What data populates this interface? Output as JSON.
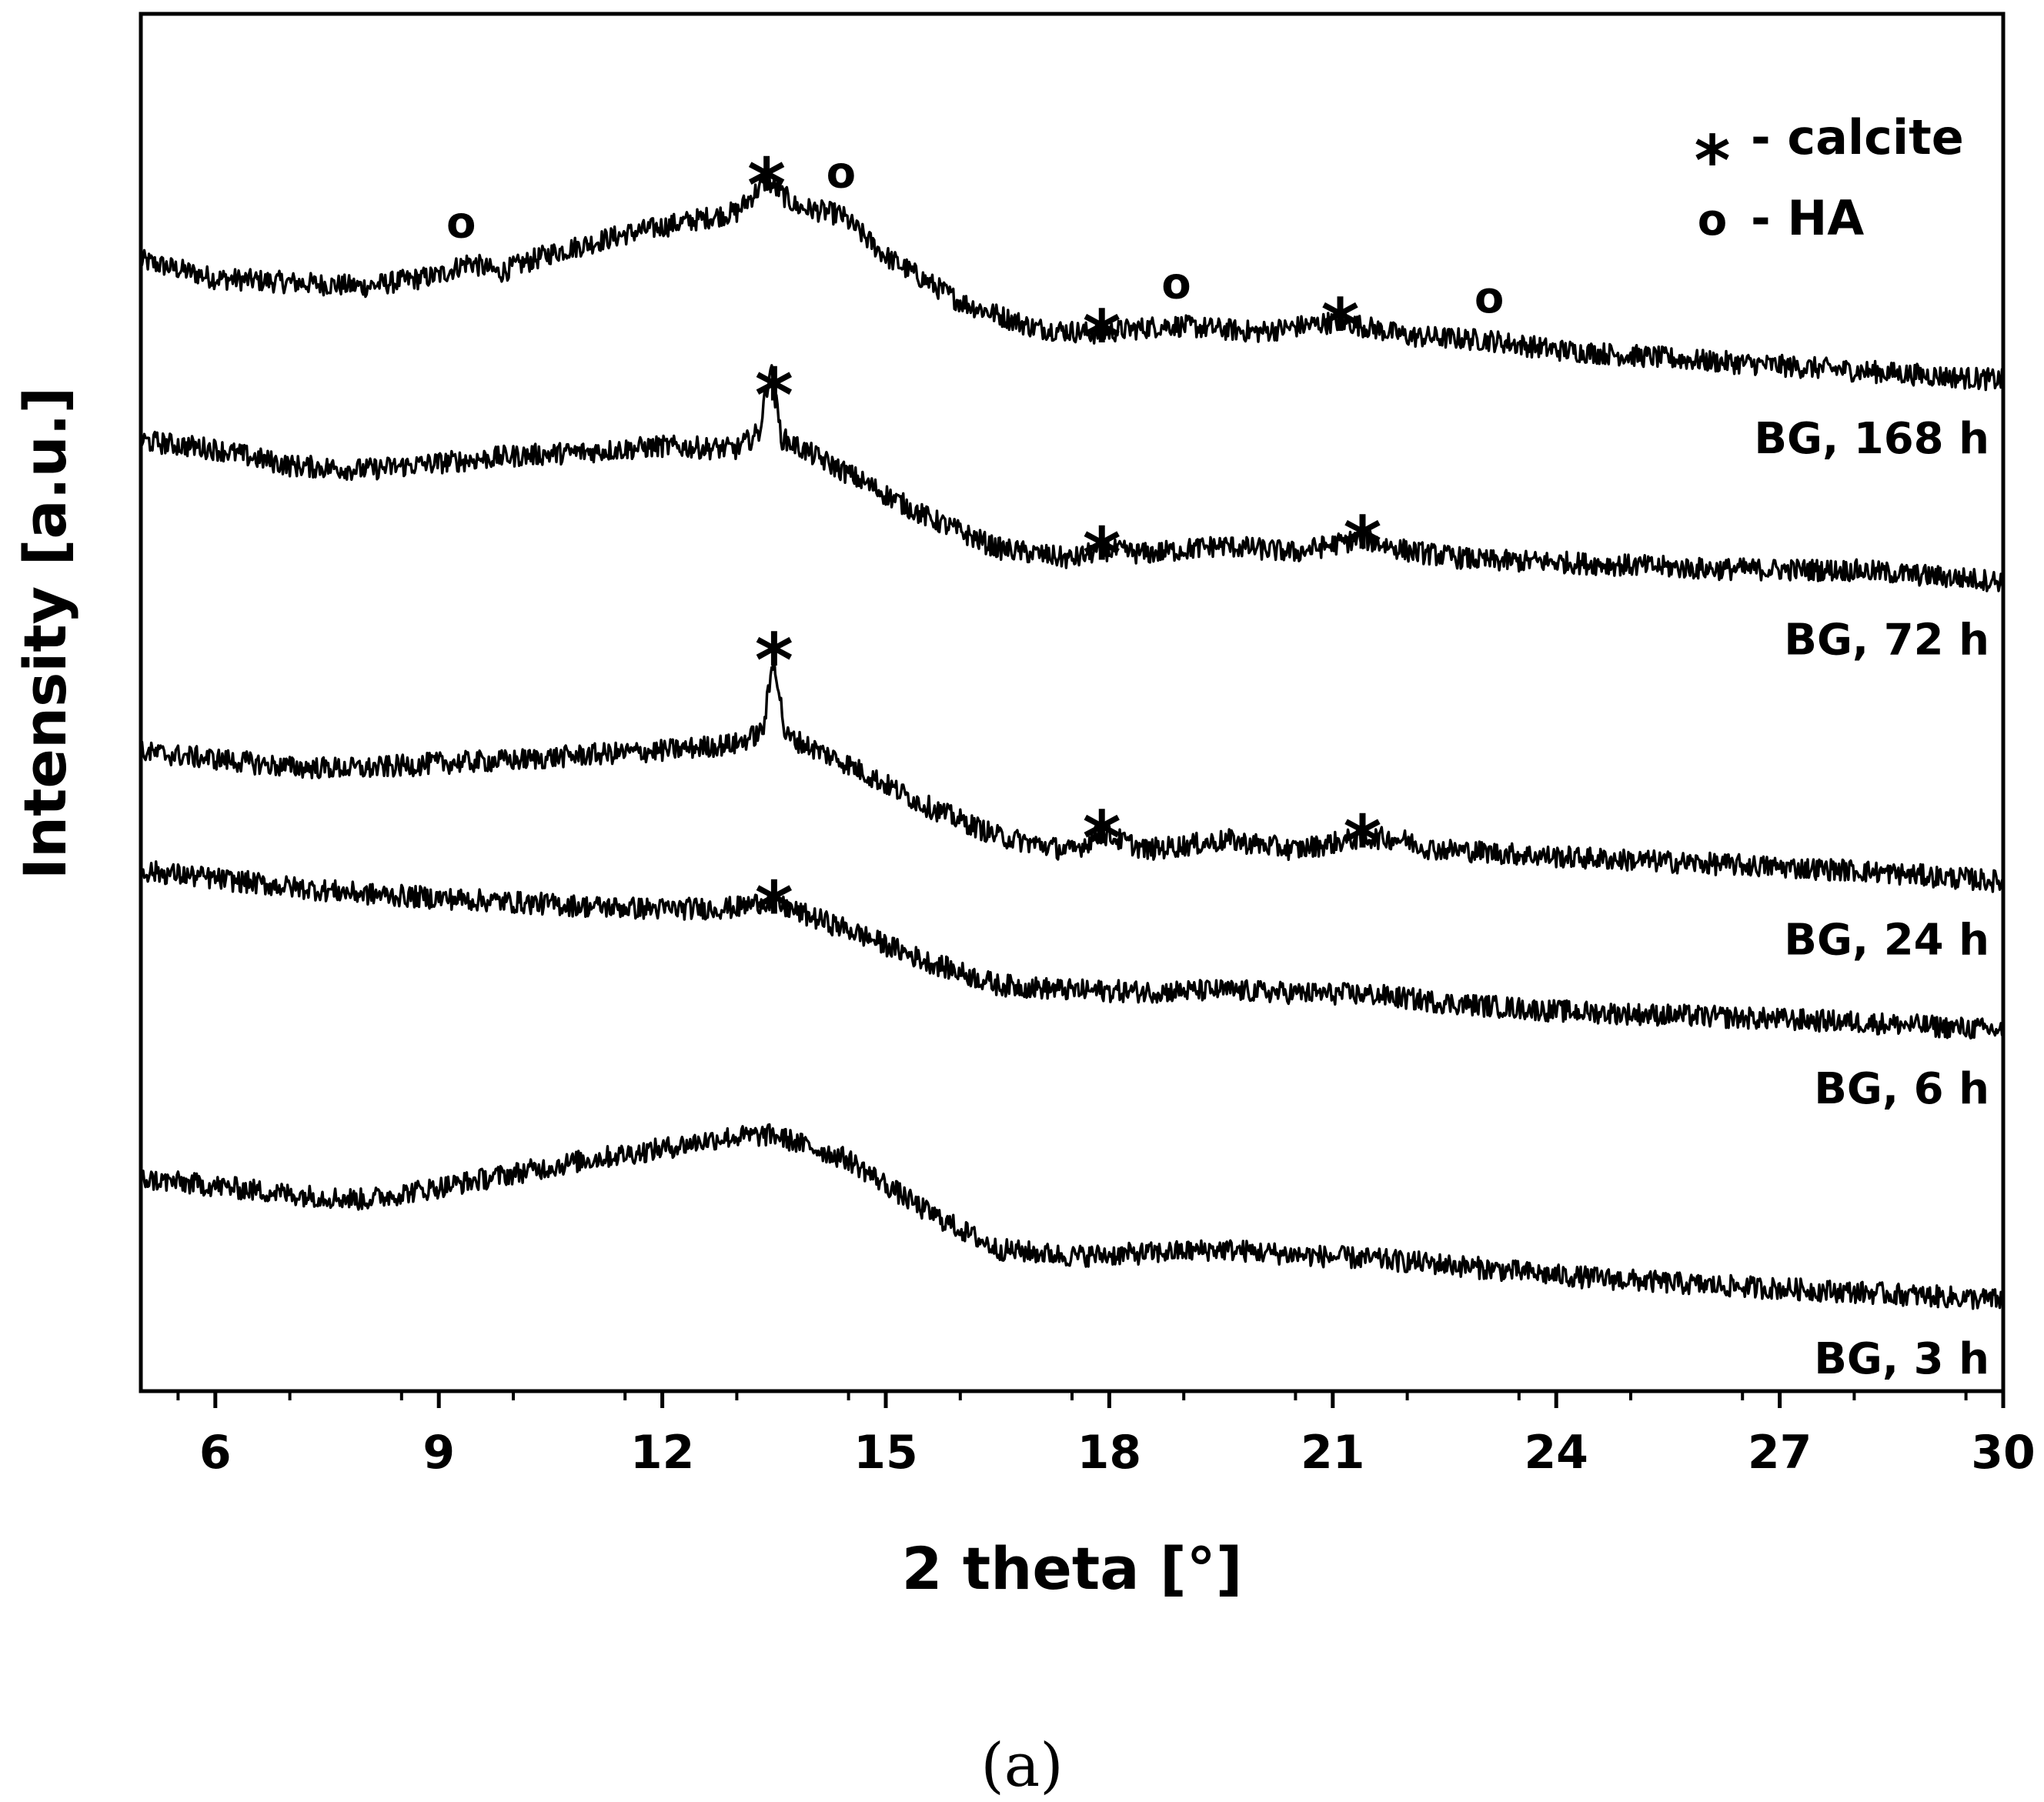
{
  "chart_data": {
    "type": "line",
    "title": "",
    "xlabel": "2 theta [°]",
    "ylabel": "Intensity [a.u.]",
    "xlim": [
      5,
      30
    ],
    "xticks": [
      6,
      9,
      12,
      15,
      18,
      21,
      24,
      27,
      30
    ],
    "ylim": [
      0,
      100
    ],
    "grid": false,
    "legend": {
      "placement": "top-right",
      "entries": [
        {
          "symbol": "*",
          "label": "- calcite"
        },
        {
          "symbol": "o",
          "label": "- HA"
        }
      ]
    },
    "series": [
      {
        "name": "BG, 168 h",
        "points": [
          [
            5,
            82.1
          ],
          [
            6,
            80.8
          ],
          [
            7,
            80.5
          ],
          [
            8,
            80.2
          ],
          [
            9,
            81.0
          ],
          [
            9.4,
            82.0
          ],
          [
            9.8,
            81.2
          ],
          [
            10.5,
            82.6
          ],
          [
            11.5,
            84.0
          ],
          [
            12.5,
            85.1
          ],
          [
            13.0,
            85.6
          ],
          [
            13.4,
            87.9
          ],
          [
            13.8,
            86.0
          ],
          [
            14.4,
            85.4
          ],
          [
            15.0,
            82.4
          ],
          [
            16.0,
            79.1
          ],
          [
            17.0,
            77.2
          ],
          [
            17.8,
            76.8
          ],
          [
            18.8,
            77.4
          ],
          [
            20.0,
            76.9
          ],
          [
            21.1,
            77.7
          ],
          [
            22.0,
            76.6
          ],
          [
            23.1,
            76.3
          ],
          [
            24.0,
            75.6
          ],
          [
            26.0,
            74.8
          ],
          [
            28.0,
            74.1
          ],
          [
            30.0,
            73.4
          ]
        ],
        "markers": [
          {
            "x": 9.3,
            "symbol": "o"
          },
          {
            "x": 13.4,
            "symbol": "*"
          },
          {
            "x": 14.4,
            "symbol": "o"
          },
          {
            "x": 17.9,
            "symbol": "*"
          },
          {
            "x": 18.9,
            "symbol": "o"
          },
          {
            "x": 21.1,
            "symbol": "*"
          },
          {
            "x": 23.1,
            "symbol": "o"
          }
        ]
      },
      {
        "name": "BG, 72 h",
        "points": [
          [
            5,
            69.0
          ],
          [
            6,
            68.4
          ],
          [
            7,
            67.2
          ],
          [
            8,
            66.9
          ],
          [
            9,
            67.4
          ],
          [
            10,
            67.9
          ],
          [
            11,
            68.2
          ],
          [
            12,
            68.6
          ],
          [
            13.0,
            68.4
          ],
          [
            13.3,
            69.6
          ],
          [
            13.45,
            74.4
          ],
          [
            13.6,
            69.2
          ],
          [
            14.5,
            66.6
          ],
          [
            15.5,
            63.6
          ],
          [
            16.5,
            61.2
          ],
          [
            17.5,
            60.4
          ],
          [
            17.9,
            61.1
          ],
          [
            18.5,
            60.8
          ],
          [
            19.5,
            61.4
          ],
          [
            20.5,
            60.9
          ],
          [
            21.4,
            61.9
          ],
          [
            22.0,
            61.0
          ],
          [
            23.0,
            60.3
          ],
          [
            24.0,
            60.2
          ],
          [
            26.0,
            59.7
          ],
          [
            28.0,
            59.6
          ],
          [
            30.0,
            58.8
          ]
        ],
        "markers": [
          {
            "x": 13.5,
            "symbol": "*"
          },
          {
            "x": 17.9,
            "symbol": "*"
          },
          {
            "x": 21.4,
            "symbol": "*"
          }
        ]
      },
      {
        "name": "BG, 24 h",
        "points": [
          [
            5,
            46.4
          ],
          [
            6,
            45.9
          ],
          [
            7,
            45.3
          ],
          [
            8,
            45.2
          ],
          [
            9,
            45.6
          ],
          [
            10,
            45.8
          ],
          [
            11,
            46.2
          ],
          [
            12,
            46.5
          ],
          [
            13.0,
            47.0
          ],
          [
            13.35,
            47.9
          ],
          [
            13.5,
            53.4
          ],
          [
            13.65,
            47.6
          ],
          [
            14.5,
            45.5
          ],
          [
            15.5,
            42.6
          ],
          [
            16.5,
            40.3
          ],
          [
            17.5,
            39.2
          ],
          [
            17.9,
            40.5
          ],
          [
            18.5,
            39.3
          ],
          [
            19.6,
            40.0
          ],
          [
            20.5,
            39.3
          ],
          [
            21.4,
            40.2
          ],
          [
            21.9,
            40.1
          ],
          [
            22.3,
            39.4
          ],
          [
            24.0,
            38.8
          ],
          [
            26.0,
            38.3
          ],
          [
            28.0,
            37.8
          ],
          [
            30.0,
            37.0
          ]
        ],
        "markers": [
          {
            "x": 13.5,
            "symbol": "*"
          },
          {
            "x": 17.9,
            "symbol": "*"
          },
          {
            "x": 21.4,
            "symbol": "*"
          }
        ]
      },
      {
        "name": "BG, 6 h",
        "points": [
          [
            5,
            37.8
          ],
          [
            6,
            37.2
          ],
          [
            7,
            36.6
          ],
          [
            8,
            36.1
          ],
          [
            9,
            35.8
          ],
          [
            10,
            35.5
          ],
          [
            11,
            35.2
          ],
          [
            12,
            35.0
          ],
          [
            13.0,
            35.1
          ],
          [
            13.4,
            35.6
          ],
          [
            13.8,
            34.8
          ],
          [
            14.5,
            33.5
          ],
          [
            15.5,
            31.3
          ],
          [
            16.5,
            29.5
          ],
          [
            17.5,
            29.1
          ],
          [
            18.5,
            29.0
          ],
          [
            19.5,
            29.1
          ],
          [
            20.5,
            28.9
          ],
          [
            21.5,
            28.8
          ],
          [
            22.5,
            28.2
          ],
          [
            24.0,
            27.6
          ],
          [
            26.0,
            27.2
          ],
          [
            28.0,
            26.8
          ],
          [
            30.0,
            26.2
          ]
        ],
        "markers": [
          {
            "x": 13.5,
            "symbol": "*"
          }
        ]
      },
      {
        "name": "BG, 3 h",
        "points": [
          [
            5,
            15.4
          ],
          [
            6,
            14.9
          ],
          [
            7,
            14.3
          ],
          [
            8,
            13.9
          ],
          [
            9,
            14.8
          ],
          [
            10,
            15.8
          ],
          [
            11,
            16.8
          ],
          [
            12,
            17.6
          ],
          [
            12.8,
            18.4
          ],
          [
            13.5,
            18.6
          ],
          [
            14.5,
            16.8
          ],
          [
            15.5,
            13.2
          ],
          [
            16.5,
            10.3
          ],
          [
            17.5,
            9.8
          ],
          [
            18.5,
            10.0
          ],
          [
            19.5,
            10.3
          ],
          [
            20.5,
            9.9
          ],
          [
            21.5,
            9.6
          ],
          [
            22.5,
            9.2
          ],
          [
            24.0,
            8.4
          ],
          [
            26.0,
            7.7
          ],
          [
            28.0,
            7.2
          ],
          [
            30.0,
            6.6
          ]
        ],
        "markers": []
      }
    ]
  },
  "figure_caption": "(a)"
}
